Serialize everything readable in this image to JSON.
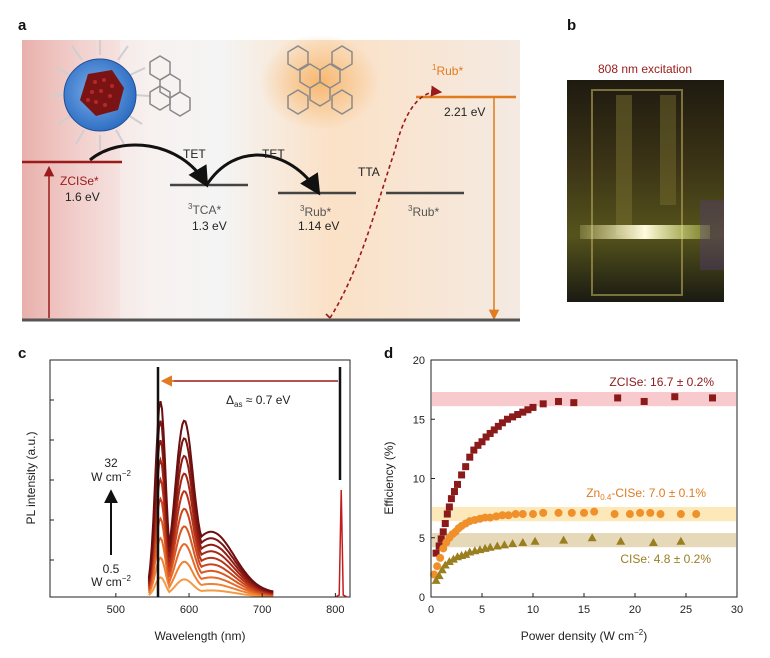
{
  "panel_a": {
    "letter": "a",
    "levels": {
      "zcise": {
        "name": "ZCISe*",
        "energy": "1.6 eV"
      },
      "tca": {
        "sup": "3",
        "name": "TCA*",
        "energy": "1.3 eV"
      },
      "rub3": {
        "sup": "3",
        "name": "Rub*",
        "energy": "1.14 eV"
      },
      "rub3b": {
        "sup": "3",
        "name": "Rub*"
      },
      "rub1": {
        "sup": "1",
        "name": "Rub*",
        "energy": "2.21 eV"
      }
    },
    "arrows": {
      "tet1": "TET",
      "tet2": "TET",
      "tta": "TTA"
    }
  },
  "panel_b": {
    "letter": "b",
    "caption": "808 nm excitation"
  },
  "panel_c": {
    "letter": "c",
    "annotation_prefix": "Δ",
    "annotation_sub": "as",
    "annotation_suffix": " ≈ 0.7 eV",
    "power_high_value": "32",
    "power_high_unit": "W cm",
    "power_high_exp": "−2",
    "power_low_value": "0.5",
    "power_low_unit": "W cm",
    "power_low_exp": "−2",
    "xlabel": "Wavelength (nm)",
    "ylabel": "PL intensity (a.u.)",
    "xticks": [
      "500",
      "600",
      "700",
      "800"
    ]
  },
  "panel_d": {
    "letter": "d",
    "xlabel_main": "Power density (W cm",
    "xlabel_exp": "−2",
    "xlabel_end": ")",
    "ylabel": "Efficiency (%)",
    "xticks": [
      "0",
      "5",
      "10",
      "15",
      "20",
      "25",
      "30"
    ],
    "yticks": [
      "0",
      "5",
      "10",
      "15",
      "20"
    ],
    "labels": {
      "zcise": "ZCISe: 16.7 ± 0.2%",
      "zn_prefix": "Zn",
      "zn_sub": "0.4",
      "zn_suffix": "-CISe: 7.0 ± 0.1%",
      "cise": "CISe: 4.8 ± 0.2%"
    }
  },
  "chart_data": [
    {
      "type": "line",
      "xlabel": "Wavelength (nm)",
      "ylabel": "PL intensity (a.u.)",
      "xlim": [
        410,
        820
      ],
      "x_markers": [
        560,
        808
      ],
      "series": [
        {
          "x": [
            545,
            560,
            575,
            590,
            610,
            640,
            680,
            715
          ],
          "peak_scale": 1.0
        },
        {
          "x": [
            545,
            560,
            575,
            590,
            610,
            640,
            680,
            715
          ],
          "peak_scale": 0.9
        },
        {
          "x": [
            545,
            560,
            575,
            590,
            610,
            640,
            680,
            715
          ],
          "peak_scale": 0.8
        },
        {
          "x": [
            545,
            560,
            575,
            590,
            610,
            640,
            680,
            715
          ],
          "peak_scale": 0.7
        },
        {
          "x": [
            545,
            560,
            575,
            590,
            610,
            640,
            680,
            715
          ],
          "peak_scale": 0.6
        },
        {
          "x": [
            545,
            560,
            575,
            590,
            610,
            640,
            680,
            715
          ],
          "peak_scale": 0.5
        },
        {
          "x": [
            545,
            560,
            575,
            590,
            610,
            640,
            680,
            715
          ],
          "peak_scale": 0.4
        },
        {
          "x": [
            545,
            560,
            575,
            590,
            610,
            640,
            680,
            715
          ],
          "peak_scale": 0.3
        },
        {
          "x": [
            545,
            560,
            575,
            590,
            610,
            640,
            680,
            715
          ],
          "peak_scale": 0.2
        },
        {
          "x": [
            545,
            560,
            575,
            590,
            610,
            640,
            680,
            715
          ],
          "peak_scale": 0.1
        }
      ]
    },
    {
      "type": "scatter",
      "xlabel": "Power density (W cm−2)",
      "ylabel": "Efficiency (%)",
      "xlim": [
        0,
        30
      ],
      "ylim": [
        0,
        20
      ],
      "series": [
        {
          "name": "ZCISe: 16.7 ± 0.2%",
          "marker": "square",
          "color": "#8b1a1a",
          "band": [
            16.1,
            17.3
          ],
          "x": [
            0.5,
            0.8,
            1.0,
            1.2,
            1.4,
            1.6,
            1.8,
            2.0,
            2.3,
            2.6,
            3.0,
            3.4,
            3.8,
            4.2,
            4.6,
            5.0,
            5.4,
            5.8,
            6.2,
            6.6,
            7.0,
            7.5,
            8.0,
            8.5,
            9.0,
            9.5,
            10,
            11,
            12.5,
            14,
            18.3,
            20.9,
            23.9,
            27.6
          ],
          "y": [
            3.7,
            4.3,
            4.9,
            5.5,
            6.2,
            7.0,
            7.6,
            8.3,
            8.9,
            9.5,
            10.3,
            11.0,
            11.8,
            12.4,
            12.8,
            13.1,
            13.5,
            13.8,
            14.1,
            14.4,
            14.7,
            15.0,
            15.2,
            15.4,
            15.6,
            15.8,
            16.0,
            16.3,
            16.5,
            16.4,
            16.8,
            16.5,
            16.9,
            16.8
          ]
        },
        {
          "name": "Zn0.4-CISe: 7.0 ± 0.1%",
          "marker": "circle",
          "color": "#f0902a",
          "band": [
            6.4,
            7.6
          ],
          "x": [
            0.3,
            0.6,
            0.9,
            1.2,
            1.5,
            1.8,
            2.1,
            2.4,
            2.7,
            3.0,
            3.4,
            3.8,
            4.3,
            4.8,
            5.3,
            5.8,
            6.4,
            7.0,
            7.6,
            8.3,
            9.0,
            10,
            11,
            12.5,
            13.8,
            15,
            16,
            18,
            19.5,
            20.5,
            21.5,
            22.5,
            24.5,
            26
          ],
          "y": [
            1.9,
            2.6,
            3.3,
            4.1,
            4.6,
            5.0,
            5.3,
            5.5,
            5.8,
            6.0,
            6.2,
            6.4,
            6.5,
            6.6,
            6.7,
            6.7,
            6.8,
            6.9,
            6.9,
            7.0,
            7.0,
            7.0,
            7.1,
            7.1,
            7.1,
            7.1,
            7.2,
            7.0,
            7.0,
            7.1,
            7.1,
            7.0,
            7.0,
            7.0
          ]
        },
        {
          "name": "CISe: 4.8 ± 0.2%",
          "marker": "triangle",
          "color": "#9a7f20",
          "band": [
            4.2,
            5.4
          ],
          "x": [
            0.5,
            0.8,
            1.1,
            1.4,
            1.8,
            2.2,
            2.6,
            3.0,
            3.4,
            3.8,
            4.3,
            4.8,
            5.3,
            5.8,
            6.5,
            7.2,
            8.0,
            9.0,
            10.2,
            13.0,
            15.8,
            18.6,
            21.8,
            24.5
          ],
          "y": [
            1.4,
            1.8,
            2.3,
            2.7,
            3.0,
            3.2,
            3.4,
            3.5,
            3.6,
            3.8,
            3.9,
            4.0,
            4.1,
            4.2,
            4.3,
            4.4,
            4.5,
            4.6,
            4.7,
            4.8,
            5.0,
            4.7,
            4.6,
            4.7
          ]
        }
      ]
    }
  ]
}
